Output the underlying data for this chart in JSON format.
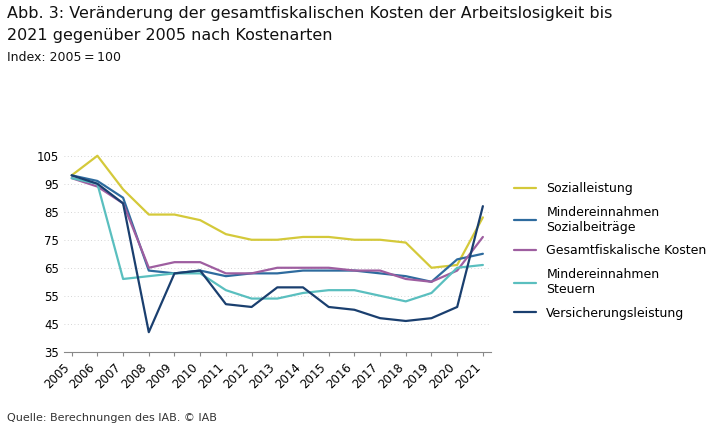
{
  "title_line1": "Abb. 3: Veränderung der gesamtfiskalischen Kosten der Arbeitslosigkeit bis",
  "title_line2": "2021 gegenüber 2005 nach Kostenarten",
  "subtitle": "Index: 2005 = 100",
  "source": "Quelle: Berechnungen des IAB. © IAB",
  "years": [
    2005,
    2006,
    2007,
    2008,
    2009,
    2010,
    2011,
    2012,
    2013,
    2014,
    2015,
    2016,
    2017,
    2018,
    2019,
    2020,
    2021
  ],
  "series": {
    "Sozialleistung": {
      "color": "#d4c93a",
      "values": [
        98,
        105,
        93,
        84,
        84,
        82,
        77,
        75,
        75,
        76,
        76,
        75,
        75,
        74,
        65,
        66,
        83
      ]
    },
    "Mindereinnahmen\nSozialbeiträge": {
      "color": "#2e6b9e",
      "values": [
        98,
        96,
        90,
        64,
        63,
        64,
        62,
        63,
        63,
        64,
        64,
        64,
        63,
        62,
        60,
        68,
        70
      ]
    },
    "Gesamtfiskalische Kosten": {
      "color": "#9e5ea0",
      "values": [
        97,
        94,
        88,
        65,
        67,
        67,
        63,
        63,
        65,
        65,
        65,
        64,
        64,
        61,
        60,
        64,
        76
      ]
    },
    "Mindereinnahmen\nSteuern": {
      "color": "#5abfbf",
      "values": [
        97,
        95,
        61,
        62,
        63,
        63,
        57,
        54,
        54,
        56,
        57,
        57,
        55,
        53,
        56,
        65,
        66
      ]
    },
    "Versicherungsleistung": {
      "color": "#1a3f6f",
      "values": [
        98,
        95,
        88,
        42,
        63,
        64,
        52,
        51,
        58,
        58,
        51,
        50,
        47,
        46,
        47,
        51,
        87
      ]
    }
  },
  "ylim": [
    35,
    107
  ],
  "yticks": [
    35,
    45,
    55,
    65,
    75,
    85,
    95,
    105
  ],
  "background_color": "#ffffff",
  "grid_color": "#c8c8c8",
  "title_fontsize": 11.5,
  "subtitle_fontsize": 9,
  "axis_fontsize": 8.5,
  "legend_fontsize": 9,
  "source_fontsize": 8
}
